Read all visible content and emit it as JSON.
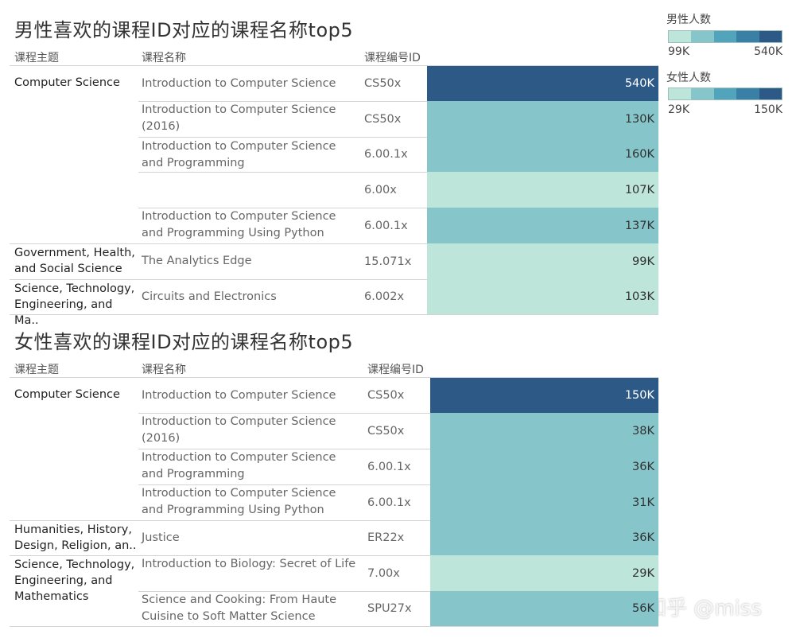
{
  "chart_data": [
    {
      "type": "table",
      "title": "男性喜欢的课程ID对应的课程名称top5",
      "columns": [
        "课程主题",
        "课程名称",
        "课程编号ID"
      ],
      "legend_title": "男性人数",
      "legend_min": "99K",
      "legend_max": "540K",
      "rows": [
        {
          "topic": "Computer Science",
          "course": "Introduction to Computer Science",
          "id": "CS50x",
          "value": 540,
          "label": "540K"
        },
        {
          "topic": "",
          "course": "Introduction to Computer Science (2016)",
          "id": "CS50x",
          "value": 130,
          "label": "130K"
        },
        {
          "topic": "",
          "course": "Introduction to Computer Science and Programming",
          "id": "6.00.1x",
          "value": 160,
          "label": "160K"
        },
        {
          "topic": "",
          "course": "",
          "id": "6.00x",
          "value": 107,
          "label": "107K"
        },
        {
          "topic": "",
          "course": "Introduction to Computer Science and Programming Using Python",
          "id": "6.00.1x",
          "value": 137,
          "label": "137K"
        },
        {
          "topic": "Government, Health,\nand Social Science",
          "course": "The Analytics Edge",
          "id": "15.071x",
          "value": 99,
          "label": "99K"
        },
        {
          "topic": "Science, Technology,\nEngineering, and Ma..",
          "course": "Circuits and Electronics",
          "id": "6.002x",
          "value": 103,
          "label": "103K"
        }
      ]
    },
    {
      "type": "table",
      "title": "女性喜欢的课程ID对应的课程名称top5",
      "columns": [
        "课程主题",
        "课程名称",
        "课程编号ID"
      ],
      "legend_title": "女性人数",
      "legend_min": "29K",
      "legend_max": "150K",
      "rows": [
        {
          "topic": "Computer Science",
          "course": "Introduction to Computer Science",
          "id": "CS50x",
          "value": 150,
          "label": "150K"
        },
        {
          "topic": "",
          "course": "Introduction to Computer Science (2016)",
          "id": "CS50x",
          "value": 38,
          "label": "38K"
        },
        {
          "topic": "",
          "course": "Introduction to Computer Science and Programming",
          "id": "6.00.1x",
          "value": 36,
          "label": "36K"
        },
        {
          "topic": "",
          "course": "Introduction to Computer Science and Programming Using Python",
          "id": "6.00.1x",
          "value": 31,
          "label": "31K"
        },
        {
          "topic": "Humanities, History,\nDesign, Religion, an..",
          "course": "Justice",
          "id": "ER22x",
          "value": 36,
          "label": "36K"
        },
        {
          "topic": "Science, Technology,\nEngineering, and\nMathematics",
          "course": "Introduction to Biology: Secret of Life",
          "id": "7.00x",
          "value": 29,
          "label": "29K"
        },
        {
          "topic": "",
          "course": "Science and Cooking: From Haute Cuisine to Soft Matter Science",
          "id": "SPU27x",
          "value": 56,
          "label": "56K"
        }
      ]
    }
  ],
  "colors": {
    "scale": [
      "#bde5da",
      "#86c6cb",
      "#52a4bc",
      "#3a7fa6",
      "#2c5985"
    ],
    "light_text": "#ffffff",
    "dark_text": "#333333"
  },
  "watermark": "知乎 @miss"
}
